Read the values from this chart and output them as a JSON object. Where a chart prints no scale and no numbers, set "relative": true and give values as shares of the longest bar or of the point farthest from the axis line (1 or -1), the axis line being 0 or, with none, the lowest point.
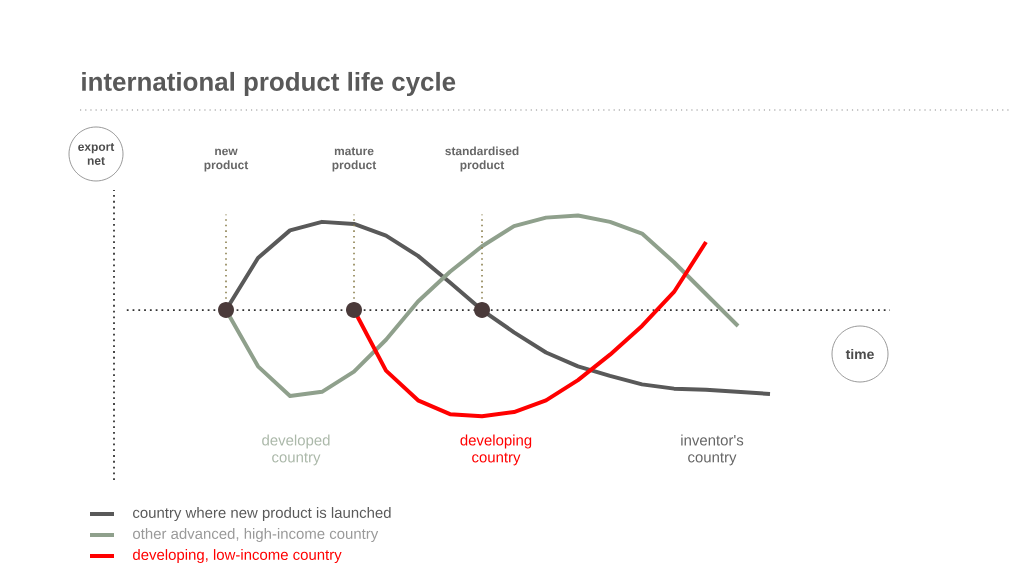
{
  "chart_data": {
    "type": "line",
    "title": "international product life cycle",
    "xlabel": "time",
    "relative": true,
    "ref_lines": [
      {
        "axis": "y",
        "value": 0,
        "color": "#333333",
        "line_style": "dotted"
      }
    ],
    "categories": [
      null,
      null,
      null,
      null,
      null,
      null,
      null,
      null,
      null,
      null,
      null,
      null,
      null,
      null,
      null,
      null,
      null,
      null
    ],
    "series": [
      {
        "name": "country where new product is launched",
        "color": "#595959",
        "values": [
          0,
          0.49,
          0.75,
          0.83,
          0.81,
          0.7,
          0.51,
          0.26,
          0,
          -0.21,
          -0.4,
          -0.53,
          -0.62,
          -0.7,
          -0.74,
          -0.75,
          -0.77,
          -0.79
        ]
      },
      {
        "name": "other advanced, high-income country",
        "color": "#8fa08c",
        "values": [
          0,
          -0.53,
          -0.81,
          -0.77,
          -0.58,
          -0.28,
          0.08,
          0.36,
          0.6,
          0.79,
          0.87,
          0.89,
          0.83,
          0.72,
          0.45,
          0.15,
          -0.15,
          null
        ]
      },
      {
        "name": "developing, low-income country",
        "color": "#ff0000",
        "values": [
          null,
          null,
          null,
          null,
          0,
          -0.57,
          -0.85,
          -0.98,
          -1,
          -0.96,
          -0.85,
          -0.66,
          -0.42,
          -0.15,
          0.17,
          0.64,
          null,
          null
        ]
      }
    ],
    "annotations": [
      "new product",
      "mature product",
      "standardised product",
      "developed country",
      "developing country",
      "inventor's country",
      "export net"
    ],
    "legend": "bottom left"
  }
}
